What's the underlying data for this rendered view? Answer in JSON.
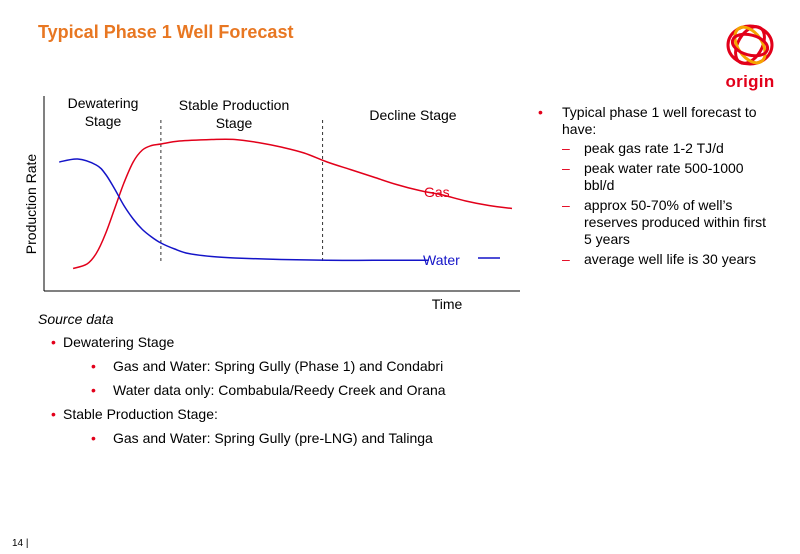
{
  "page": {
    "title": "Typical Phase 1 Well Forecast",
    "page_number": "14 |"
  },
  "logo": {
    "text": "origin",
    "color": "#e2001a",
    "accent": "#f5a400"
  },
  "chart_data": {
    "type": "line",
    "title": "",
    "xlabel": "Time",
    "ylabel": "Production Rate",
    "stages": [
      "Dewatering Stage",
      "Stable Production Stage",
      "Decline Stage"
    ],
    "stage_labels": [
      {
        "line1": "Dewatering",
        "line2": "Stage"
      },
      {
        "line1": "Stable Production",
        "line2": "Stage"
      },
      {
        "line1": "Decline Stage",
        "line2": ""
      }
    ],
    "stage_boundaries": [
      24,
      59
    ],
    "xlim": [
      0,
      100
    ],
    "ylim": [
      0,
      100
    ],
    "grid": false,
    "series": [
      {
        "name": "Gas",
        "color": "#e2001a",
        "x": [
          5,
          8,
          10,
          12,
          14,
          16,
          18,
          20,
          22,
          24,
          28,
          35,
          40,
          45,
          50,
          55,
          60,
          65,
          70,
          75,
          80,
          85,
          90,
          95,
          100
        ],
        "y": [
          5,
          8,
          15,
          28,
          45,
          62,
          76,
          84,
          87,
          88,
          90,
          91,
          91,
          89,
          86,
          82,
          76,
          71,
          66,
          61,
          57,
          54,
          50,
          47,
          45
        ]
      },
      {
        "name": "Water",
        "color": "#1414c8",
        "x": [
          2,
          6,
          10,
          12,
          14,
          16,
          18,
          20,
          22,
          24,
          27,
          30,
          35,
          40,
          50,
          60,
          70,
          80,
          82
        ],
        "y": [
          76,
          78,
          74,
          68,
          58,
          47,
          38,
          31,
          26,
          22,
          18,
          15,
          13,
          12,
          11,
          10.5,
          10.5,
          10.5,
          10.5
        ]
      }
    ],
    "legend": [
      {
        "name": "Gas",
        "placement": "right"
      },
      {
        "name": "Water",
        "placement": "right"
      }
    ]
  },
  "bullets": {
    "main": "Typical phase 1 well forecast to have:",
    "items": [
      "peak gas rate 1-2 TJ/d",
      "peak water rate 500-1000 bbl/d",
      "approx 50-70% of well’s reserves produced within first 5 years",
      "average well life is 30 years"
    ]
  },
  "source": {
    "title": "Source data",
    "groups": [
      {
        "label": "Dewatering Stage",
        "items": [
          "Gas and Water: Spring Gully (Phase 1) and Condabri",
          "Water data only: Combabula/Reedy Creek and Orana"
        ]
      },
      {
        "label": "Stable Production Stage:",
        "items": [
          "Gas and Water: Spring Gully (pre-LNG) and Talinga"
        ]
      }
    ]
  }
}
